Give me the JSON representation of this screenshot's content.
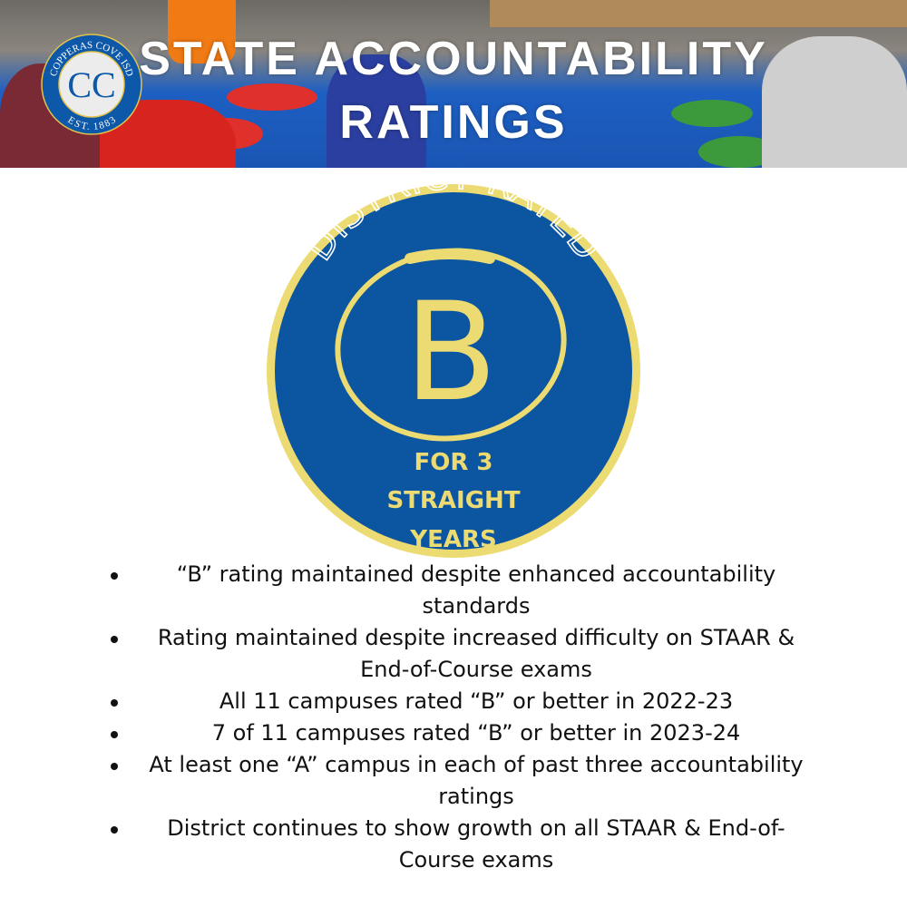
{
  "header": {
    "title_line1": "STATE ACCOUNTABILITY",
    "title_line2": "RATINGS",
    "logo": {
      "top_text": "COPPERAS COVE ISD",
      "monogram": "CC",
      "bottom_text": "EST. 1883"
    }
  },
  "badge": {
    "arc_text": "DISTRICT RATED",
    "grade": "B",
    "line1": "FOR 3",
    "line2": "STRAIGHT",
    "line3": "YEARS",
    "colors": {
      "blue": "#0b55a1",
      "yellow": "#ebdb72"
    }
  },
  "bullets": [
    "“B” rating maintained despite enhanced accountability standards",
    "Rating maintained despite increased difficulty on STAAR & End-of-Course exams",
    "All 11 campuses rated “B” or better in 2022-23",
    "7 of 11 campuses rated “B” or better in 2023-24",
    "At least one “A” campus in each of past three accountability ratings",
    "District continues to show growth on all STAAR & End-of-Course exams"
  ]
}
